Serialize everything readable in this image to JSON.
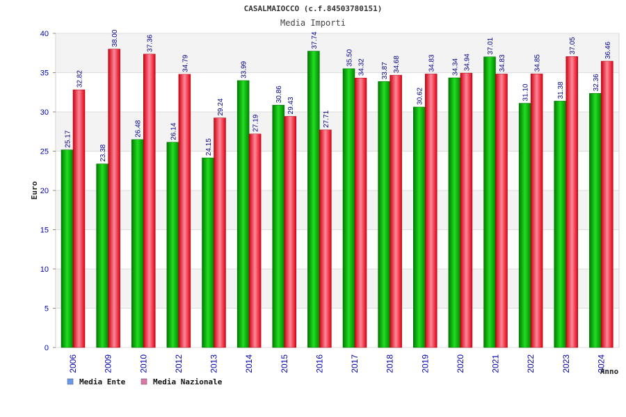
{
  "chart_data": {
    "type": "bar",
    "title": "CASALMAIOCCO (c.f.84503780151)",
    "subtitle": "Media Importi",
    "ylabel": "Euro",
    "xlabel": "Anno",
    "ylim": [
      0,
      40
    ],
    "yticks": [
      0,
      5,
      10,
      15,
      20,
      25,
      30,
      35,
      40
    ],
    "grid": true,
    "legend_position": "bottom-left",
    "categories": [
      "2006",
      "2009",
      "2010",
      "2012",
      "2013",
      "2014",
      "2015",
      "2016",
      "2017",
      "2018",
      "2019",
      "2020",
      "2021",
      "2022",
      "2023",
      "2024"
    ],
    "series": [
      {
        "name": "Media Ente",
        "color": "#00bb00",
        "legend_color": "#6699ee",
        "values": [
          25.17,
          23.38,
          26.48,
          26.14,
          24.15,
          33.99,
          30.86,
          37.74,
          35.5,
          33.87,
          30.62,
          34.34,
          37.01,
          31.1,
          31.38,
          32.36
        ],
        "labels": [
          "25.17",
          "23.38",
          "26.48",
          "26.14",
          "24.15",
          "33.99",
          "30.86",
          "37.74",
          "35.50",
          "33.87",
          "30.62",
          "34.34",
          "37.01",
          "31.10",
          "31.38",
          "32.36"
        ]
      },
      {
        "name": "Media Nazionale",
        "color": "#ee1122",
        "legend_color": "#dd77aa",
        "values": [
          32.82,
          38.0,
          37.36,
          34.79,
          29.24,
          27.19,
          29.43,
          27.71,
          34.32,
          34.68,
          34.83,
          34.94,
          34.83,
          34.85,
          37.05,
          36.46
        ],
        "labels": [
          "32.82",
          "38.00",
          "37.36",
          "34.79",
          "29.24",
          "27.19",
          "29.43",
          "27.71",
          "34.32",
          "34.68",
          "34.83",
          "34.94",
          "34.83",
          "34.85",
          "37.05",
          "36.46"
        ]
      }
    ]
  }
}
